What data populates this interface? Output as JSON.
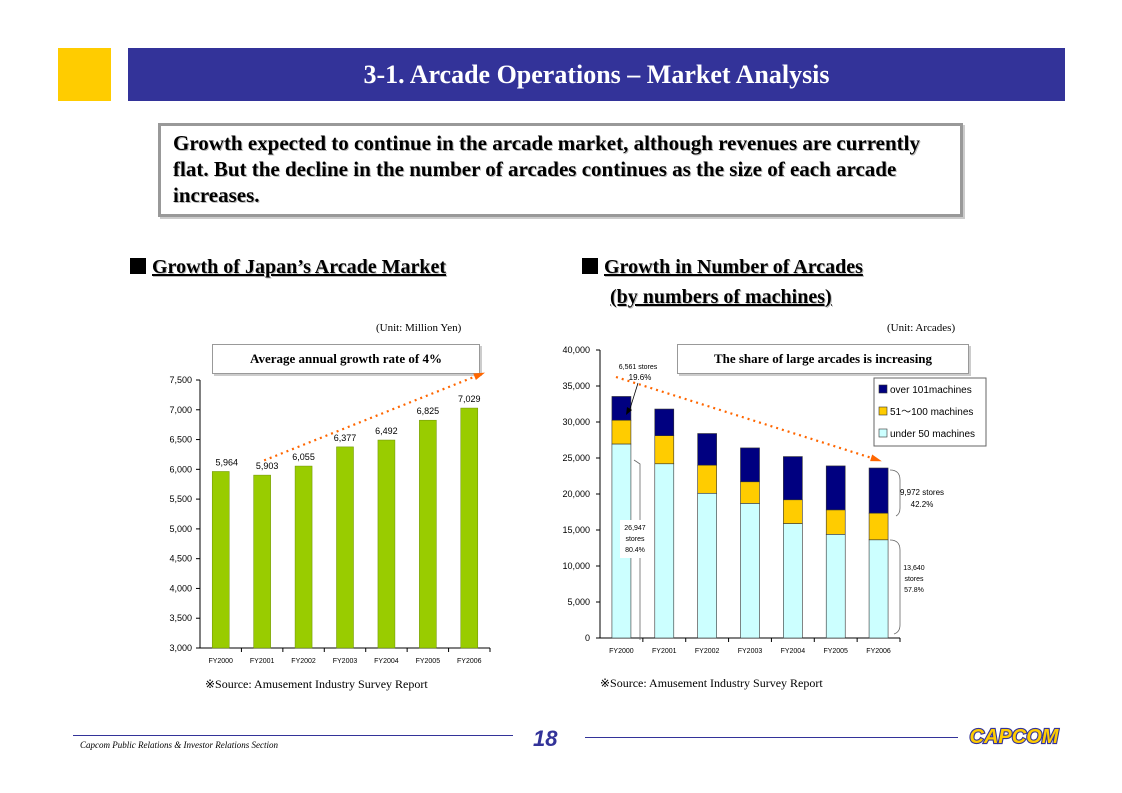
{
  "header": {
    "title": "3-1.   Arcade Operations – Market Analysis"
  },
  "summary": {
    "text": "Growth expected to continue in the arcade market, although revenues are currently flat. But the decline in the number of arcades continues as the size of each arcade increases."
  },
  "left": {
    "heading": "Growth of Japan’s Arcade Market",
    "unit": "(Unit: Million Yen)",
    "note": "Average annual growth rate of 4%",
    "source": "※Source: Amusement Industry Survey Report"
  },
  "right": {
    "heading_line1": "Growth in Number of Arcades",
    "heading_line2": "(by numbers of machines)",
    "unit": "(Unit: Arcades)",
    "note": "The share of large arcades is increasing",
    "source": "※Source: Amusement Industry Survey Report",
    "ann_top": [
      "6,561 stores",
      "19.6%"
    ],
    "ann_mid": [
      "26,947",
      "stores",
      "80.4%"
    ],
    "ann_r1": [
      "9,972 stores",
      "42.2%"
    ],
    "ann_r2": [
      "13,640",
      "stores",
      "57.8%"
    ]
  },
  "footer": {
    "text": "Capcom Public Relations & Investor Relations Section",
    "page": "18",
    "logo": "CAPCOM"
  },
  "colors": {
    "title_bg": "#333399",
    "accent": "#ffcc00",
    "bar_green": "#99cc00",
    "navy": "#000080",
    "yellow": "#ffcc00",
    "light_cyan": "#ccffff",
    "arrow": "#ff6600"
  },
  "chart_data": [
    {
      "type": "bar",
      "categories": [
        "FY2000",
        "FY2001",
        "FY2002",
        "FY2003",
        "FY2004",
        "FY2005",
        "FY2006"
      ],
      "values": [
        5964,
        5903,
        6055,
        6377,
        6492,
        6825,
        7029
      ],
      "value_labels": [
        "5,964",
        "5,903",
        "6,055",
        "6,377",
        "6,492",
        "6,825",
        "7,029"
      ],
      "yticks": [
        "3,000",
        "3,500",
        "4,000",
        "4,500",
        "5,000",
        "5,500",
        "6,000",
        "6,500",
        "7,000",
        "7,500"
      ],
      "ylim": [
        3000,
        7500
      ],
      "grid": false
    },
    {
      "type": "bar",
      "stacked": true,
      "categories": [
        "FY2000",
        "FY2001",
        "FY2002",
        "FY2003",
        "FY2004",
        "FY2005",
        "FY2006"
      ],
      "series": [
        {
          "name": "under 50 machines",
          "values": [
            26947,
            24200,
            20100,
            18700,
            15900,
            14400,
            13640
          ],
          "color": "#ccffff"
        },
        {
          "name": "51～100 machines",
          "values": [
            3300,
            3900,
            3900,
            3000,
            3300,
            3400,
            3700
          ],
          "color": "#ffcc00"
        },
        {
          "name": "over 101machines",
          "values": [
            3300,
            3700,
            4400,
            4700,
            6000,
            6100,
            6272
          ],
          "color": "#000080"
        }
      ],
      "yticks": [
        "0",
        "5,000",
        "10,000",
        "15,000",
        "20,000",
        "25,000",
        "30,000",
        "35,000",
        "40,000"
      ],
      "ylim": [
        0,
        40000
      ],
      "legend": "top-right",
      "grid": false
    }
  ]
}
